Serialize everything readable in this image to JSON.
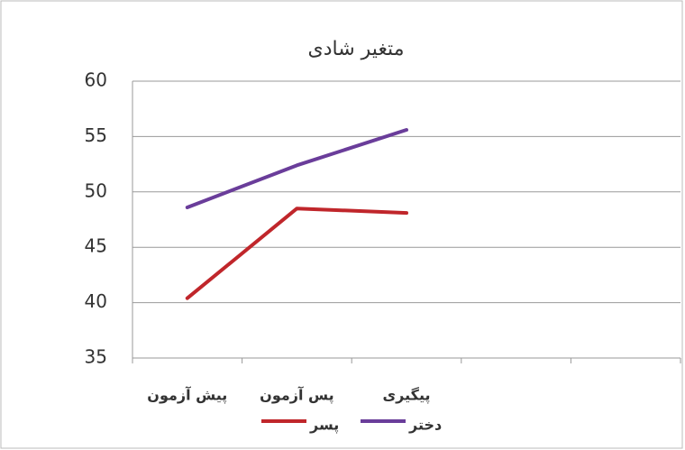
{
  "chart_data": {
    "type": "line",
    "title": "متغیر شادی",
    "categories": [
      "پیش آزمون",
      "پس آزمون",
      "پیگیری",
      null,
      null
    ],
    "series": [
      {
        "name": "پسر",
        "color": "#c0262b",
        "values": [
          40.4,
          48.5,
          48.1,
          null,
          null
        ]
      },
      {
        "name": "دختر",
        "color": "#6a3d9a",
        "values": [
          48.6,
          52.4,
          55.6,
          null,
          null
        ]
      }
    ],
    "ylim": [
      35,
      60
    ],
    "yticks": [
      35,
      40,
      45,
      50,
      55,
      60
    ],
    "grid": true,
    "legend": "bottom"
  }
}
